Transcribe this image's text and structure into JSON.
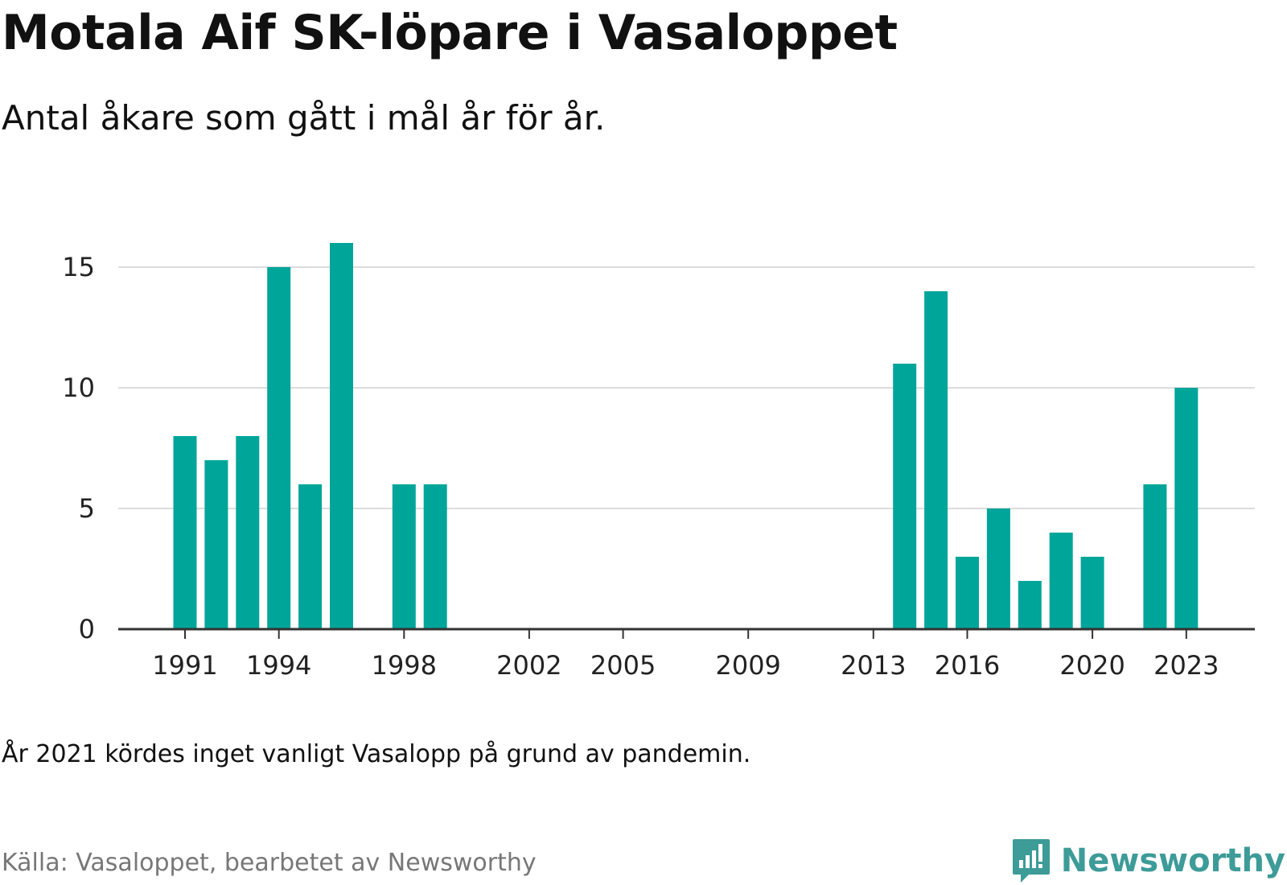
{
  "title": "Motala Aif SK-löpare i Vasaloppet",
  "subtitle": "Antal åkare som gått i mål år för år.",
  "note": "År 2021 kördes inget vanligt Vasalopp på grund av pandemin.",
  "source": "Källa: Vasaloppet, bearbetet av Newsworthy",
  "brand": {
    "name": "Newsworthy",
    "icon": "newsworthy-logo-icon"
  },
  "colors": {
    "bar": "#00a59a",
    "grid": "#dddddd",
    "axis": "#333333"
  },
  "chart_data": {
    "type": "bar",
    "x": [
      1991,
      1992,
      1993,
      1994,
      1995,
      1996,
      1997,
      1998,
      1999,
      2000,
      2001,
      2002,
      2003,
      2004,
      2005,
      2006,
      2007,
      2008,
      2009,
      2010,
      2011,
      2012,
      2013,
      2014,
      2015,
      2016,
      2017,
      2018,
      2019,
      2020,
      2021,
      2022,
      2023
    ],
    "values": [
      8,
      7,
      8,
      15,
      6,
      16,
      0,
      6,
      6,
      0,
      0,
      0,
      0,
      0,
      0,
      0,
      0,
      0,
      0,
      0,
      0,
      0,
      0,
      11,
      14,
      3,
      5,
      2,
      4,
      3,
      0,
      6,
      10
    ],
    "xticks": [
      1991,
      1994,
      1998,
      2002,
      2005,
      2009,
      2013,
      2016,
      2020,
      2023
    ],
    "yticks": [
      0,
      5,
      10,
      15
    ],
    "ylim": [
      0,
      16
    ],
    "grid": true
  }
}
